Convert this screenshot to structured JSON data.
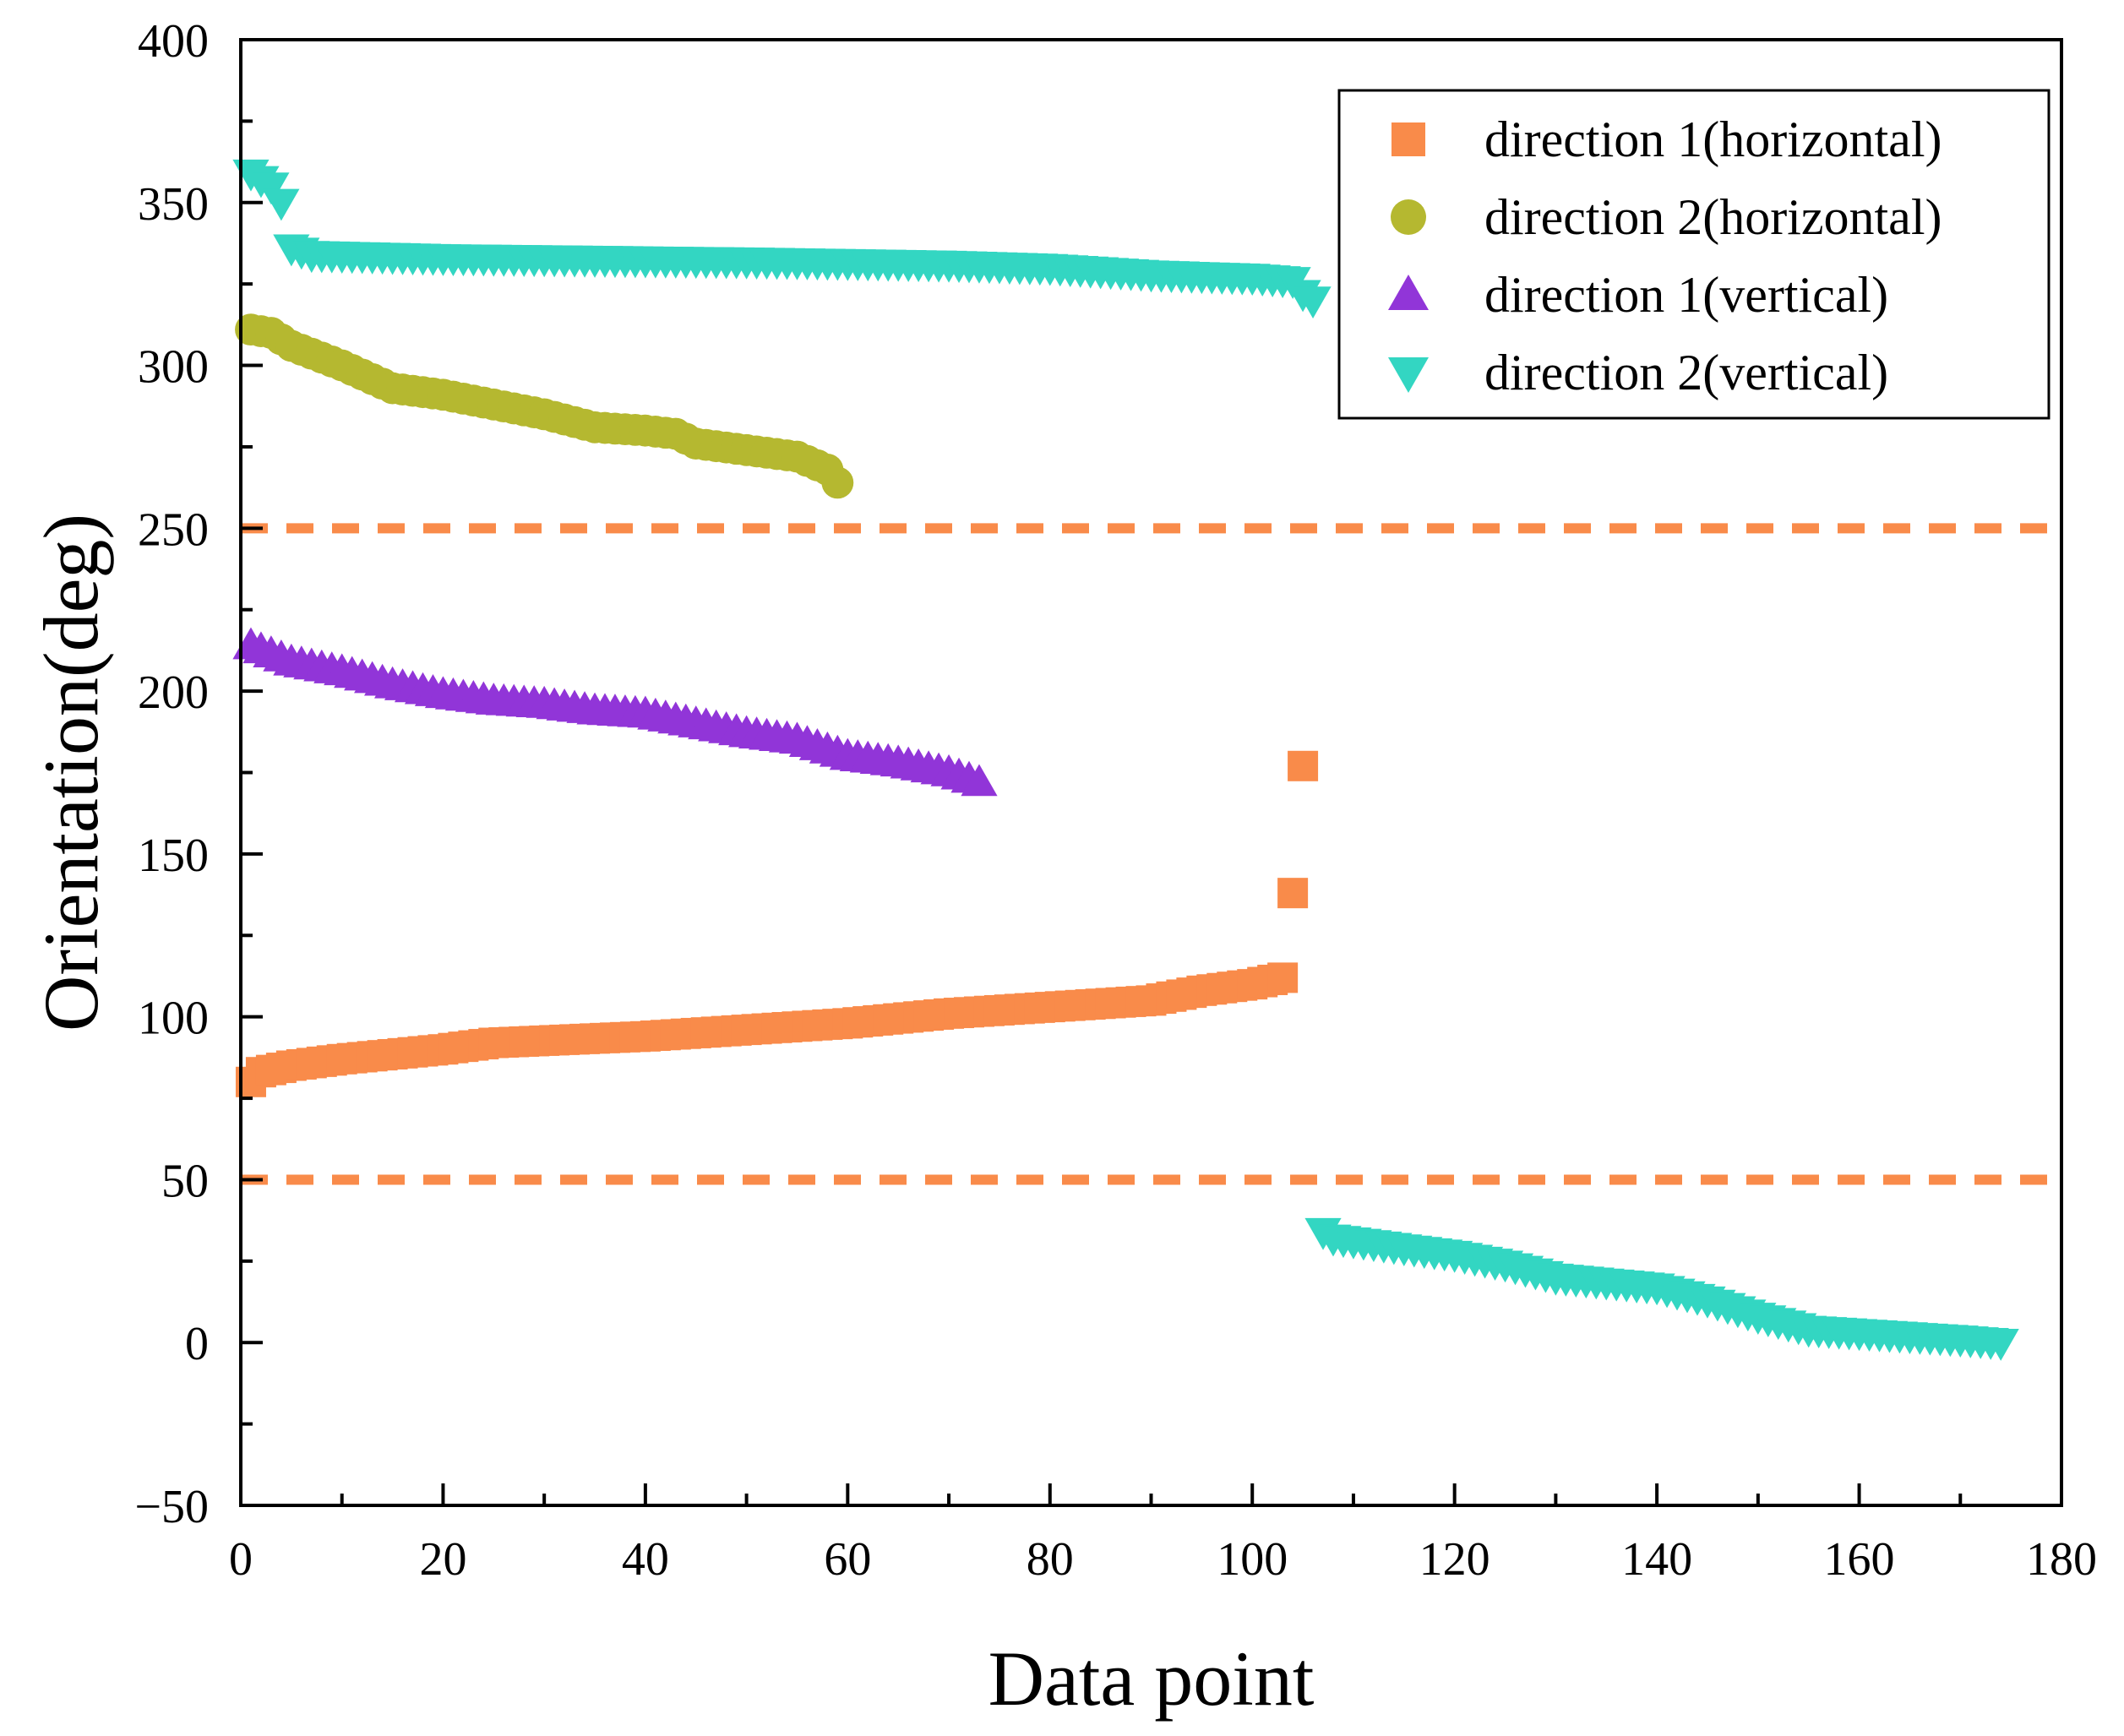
{
  "chart_data": {
    "type": "scatter",
    "xlabel": "Data point",
    "ylabel": "Orientation(deg)",
    "xlim": [
      0,
      180
    ],
    "ylim": [
      -50,
      400
    ],
    "xticks": [
      0,
      20,
      40,
      60,
      80,
      100,
      120,
      140,
      160,
      180
    ],
    "yticks": [
      -50,
      0,
      50,
      100,
      150,
      200,
      250,
      300,
      350,
      400
    ],
    "ytick_labels": [
      "−50",
      "0",
      "50",
      "100",
      "150",
      "200",
      "250",
      "300",
      "350",
      "400"
    ],
    "grid": false,
    "legend_position": "top-right",
    "reference_lines": [
      {
        "y": 250,
        "style": "dashed",
        "color": "#F98B4A"
      },
      {
        "y": 50,
        "style": "dashed",
        "color": "#F98B4A"
      }
    ],
    "series": [
      {
        "name": "direction 1(horizontal)",
        "marker": "square",
        "color": "#F98B4A",
        "x_start": 1,
        "anchors": [
          [
            1,
            80
          ],
          [
            2,
            83
          ],
          [
            5,
            85
          ],
          [
            10,
            87
          ],
          [
            20,
            90
          ],
          [
            25,
            92
          ],
          [
            40,
            94
          ],
          [
            50,
            96
          ],
          [
            60,
            98
          ],
          [
            70,
            101
          ],
          [
            80,
            103
          ],
          [
            90,
            105
          ],
          [
            95,
            108
          ],
          [
            100,
            110
          ],
          [
            103,
            112
          ]
        ],
        "extra_points": [
          [
            104,
            138
          ],
          [
            105,
            177
          ]
        ]
      },
      {
        "name": "direction 2(horizontal)",
        "marker": "circle",
        "color": "#B5B830",
        "x_start": 1,
        "anchors": [
          [
            1,
            311
          ],
          [
            3,
            310
          ],
          [
            5,
            306
          ],
          [
            10,
            300
          ],
          [
            15,
            293
          ],
          [
            20,
            291
          ],
          [
            25,
            288
          ],
          [
            30,
            285
          ],
          [
            35,
            281
          ],
          [
            40,
            280
          ],
          [
            43,
            279
          ],
          [
            45,
            276
          ],
          [
            50,
            274
          ],
          [
            55,
            272
          ],
          [
            58,
            268
          ],
          [
            59,
            264
          ]
        ]
      },
      {
        "name": "direction 1(vertical)",
        "marker": "triangle-up",
        "color": "#9135D8",
        "x_start": 1,
        "anchors": [
          [
            1,
            214
          ],
          [
            5,
            209
          ],
          [
            10,
            206
          ],
          [
            15,
            202
          ],
          [
            20,
            199
          ],
          [
            25,
            197
          ],
          [
            30,
            196
          ],
          [
            35,
            194
          ],
          [
            40,
            193
          ],
          [
            45,
            190
          ],
          [
            50,
            187
          ],
          [
            55,
            185
          ],
          [
            58,
            182
          ],
          [
            60,
            180
          ],
          [
            65,
            178
          ],
          [
            70,
            175
          ],
          [
            73,
            172
          ]
        ]
      },
      {
        "name": "direction 2(vertical)",
        "marker": "triangle-down",
        "color": "#33D6C2",
        "x_start": 1,
        "anchors": [
          [
            1,
            359
          ],
          [
            3,
            355
          ],
          [
            4,
            350
          ],
          [
            5,
            336
          ],
          [
            7,
            334
          ],
          [
            20,
            333
          ],
          [
            50,
            332
          ],
          [
            70,
            331
          ],
          [
            80,
            330
          ],
          [
            90,
            328
          ],
          [
            100,
            327
          ],
          [
            104,
            326
          ],
          [
            105,
            322
          ],
          [
            106,
            320
          ],
          [
            106.01,
            36
          ],
          [
            108,
            32
          ],
          [
            115,
            29
          ],
          [
            120,
            27
          ],
          [
            125,
            24
          ],
          [
            130,
            20
          ],
          [
            140,
            17
          ],
          [
            145,
            13
          ],
          [
            150,
            8
          ],
          [
            155,
            4
          ],
          [
            165,
            2
          ],
          [
            170,
            1
          ],
          [
            174,
            0
          ]
        ]
      }
    ]
  }
}
